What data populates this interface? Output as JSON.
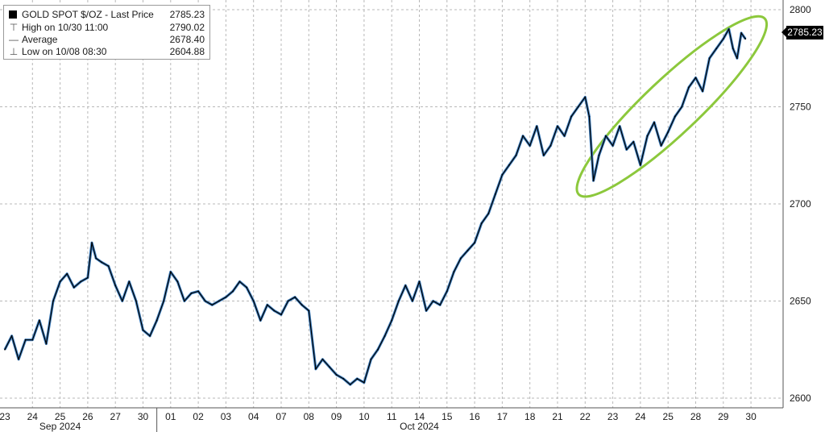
{
  "legend": {
    "title": "GOLD SPOT $/OZ - Last Price",
    "last_value": "2785.23",
    "rows": [
      {
        "label": "High on 10/30 11:00",
        "value": "2790.02",
        "icon": "high-marker-icon"
      },
      {
        "label": "Average",
        "value": "2678.40",
        "icon": "average-line-icon"
      },
      {
        "label": "Low on 10/08 08:30",
        "value": "2604.88",
        "icon": "low-marker-icon"
      }
    ]
  },
  "last_price_tag": "2785.23",
  "colors": {
    "price_line": "#000000",
    "price_shadow": "#3d7ebf",
    "highlight_ellipse": "#8cc83c",
    "grid": "#b8b8b8"
  },
  "chart_data": {
    "type": "line",
    "ylim": [
      2595,
      2805
    ],
    "y_ticks": [
      "2600",
      "2650",
      "2700",
      "2750",
      "2800"
    ],
    "x_ticks": [
      "23",
      "24",
      "25",
      "26",
      "27",
      "30",
      "01",
      "02",
      "03",
      "04",
      "07",
      "08",
      "09",
      "10",
      "11",
      "14",
      "15",
      "16",
      "17",
      "18",
      "21",
      "22",
      "23",
      "24",
      "25",
      "28",
      "29",
      "30"
    ],
    "month_labels": [
      {
        "text": "Sep 2024",
        "tick_index": 2
      },
      {
        "text": "Oct 2024",
        "tick_index": 15
      }
    ],
    "grid": true,
    "highlight": {
      "shape": "ellipse",
      "from_tick": 22,
      "to_tick": 27
    },
    "series": [
      {
        "points": [
          [
            0,
            2625
          ],
          [
            0.25,
            2632
          ],
          [
            0.5,
            2620
          ],
          [
            0.75,
            2630
          ],
          [
            1,
            2630
          ],
          [
            1.25,
            2640
          ],
          [
            1.5,
            2628
          ],
          [
            1.75,
            2650
          ],
          [
            2,
            2660
          ],
          [
            2.25,
            2664
          ],
          [
            2.5,
            2657
          ],
          [
            2.75,
            2660
          ],
          [
            3,
            2662
          ],
          [
            3.15,
            2680
          ],
          [
            3.3,
            2672
          ],
          [
            3.5,
            2670
          ],
          [
            3.75,
            2668
          ],
          [
            4,
            2658
          ],
          [
            4.25,
            2650
          ],
          [
            4.5,
            2660
          ],
          [
            4.75,
            2650
          ],
          [
            5,
            2635
          ],
          [
            5.25,
            2632
          ],
          [
            5.5,
            2640
          ],
          [
            5.75,
            2650
          ],
          [
            6,
            2665
          ],
          [
            6.25,
            2660
          ],
          [
            6.5,
            2650
          ],
          [
            6.75,
            2654
          ],
          [
            7,
            2655
          ],
          [
            7.25,
            2650
          ],
          [
            7.5,
            2648
          ],
          [
            7.75,
            2650
          ],
          [
            8,
            2652
          ],
          [
            8.25,
            2655
          ],
          [
            8.5,
            2660
          ],
          [
            8.75,
            2657
          ],
          [
            9,
            2650
          ],
          [
            9.25,
            2640
          ],
          [
            9.5,
            2648
          ],
          [
            9.75,
            2645
          ],
          [
            10,
            2643
          ],
          [
            10.25,
            2650
          ],
          [
            10.5,
            2652
          ],
          [
            10.75,
            2648
          ],
          [
            11,
            2645
          ],
          [
            11.25,
            2615
          ],
          [
            11.5,
            2620
          ],
          [
            11.75,
            2616
          ],
          [
            12,
            2612
          ],
          [
            12.25,
            2610
          ],
          [
            12.5,
            2607
          ],
          [
            12.75,
            2610
          ],
          [
            13,
            2608
          ],
          [
            13.25,
            2620
          ],
          [
            13.5,
            2625
          ],
          [
            13.75,
            2632
          ],
          [
            14,
            2640
          ],
          [
            14.25,
            2650
          ],
          [
            14.5,
            2658
          ],
          [
            14.75,
            2650
          ],
          [
            15,
            2660
          ],
          [
            15.25,
            2645
          ],
          [
            15.5,
            2650
          ],
          [
            15.75,
            2648
          ],
          [
            16,
            2655
          ],
          [
            16.25,
            2665
          ],
          [
            16.5,
            2672
          ],
          [
            16.75,
            2676
          ],
          [
            17,
            2680
          ],
          [
            17.25,
            2690
          ],
          [
            17.5,
            2695
          ],
          [
            17.75,
            2705
          ],
          [
            18,
            2715
          ],
          [
            18.25,
            2720
          ],
          [
            18.5,
            2725
          ],
          [
            18.75,
            2735
          ],
          [
            19,
            2730
          ],
          [
            19.25,
            2740
          ],
          [
            19.5,
            2725
          ],
          [
            19.75,
            2730
          ],
          [
            20,
            2740
          ],
          [
            20.25,
            2735
          ],
          [
            20.5,
            2745
          ],
          [
            20.75,
            2750
          ],
          [
            21,
            2755
          ],
          [
            21.15,
            2745
          ],
          [
            21.3,
            2712
          ],
          [
            21.5,
            2725
          ],
          [
            21.75,
            2735
          ],
          [
            22,
            2730
          ],
          [
            22.25,
            2740
          ],
          [
            22.5,
            2728
          ],
          [
            22.75,
            2732
          ],
          [
            23,
            2720
          ],
          [
            23.25,
            2735
          ],
          [
            23.5,
            2742
          ],
          [
            23.75,
            2730
          ],
          [
            24,
            2737
          ],
          [
            24.25,
            2745
          ],
          [
            24.5,
            2750
          ],
          [
            24.75,
            2760
          ],
          [
            25,
            2765
          ],
          [
            25.25,
            2758
          ],
          [
            25.5,
            2775
          ],
          [
            25.75,
            2780
          ],
          [
            26,
            2785
          ],
          [
            26.2,
            2790
          ],
          [
            26.35,
            2780
          ],
          [
            26.5,
            2775
          ],
          [
            26.65,
            2788
          ],
          [
            26.8,
            2785
          ]
        ]
      }
    ]
  }
}
